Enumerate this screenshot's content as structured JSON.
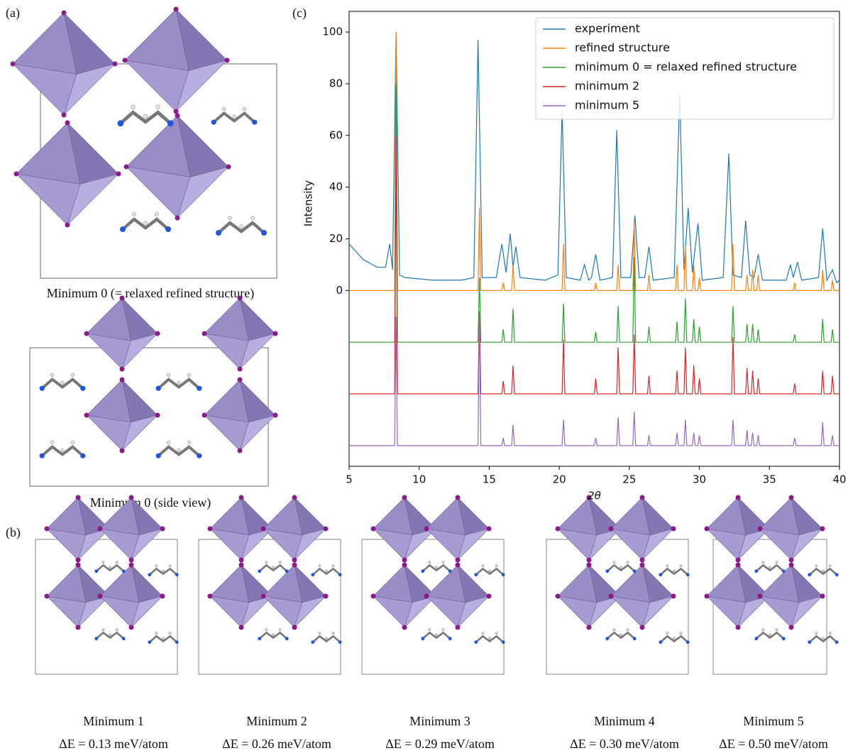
{
  "panels": {
    "a": {
      "label": "(a)",
      "caption_top": "Minimum 0 (= relaxed refined structure)",
      "caption_side": "Minimum 0 (side view)"
    },
    "b": {
      "label": "(b)",
      "minima": [
        {
          "name": "Minimum  1",
          "energy": "ΔE = 0.13 meV/atom"
        },
        {
          "name": "Minimum  2",
          "energy": "ΔE = 0.26 meV/atom"
        },
        {
          "name": "Minimum  3",
          "energy": "ΔE = 0.29 meV/atom"
        },
        {
          "name": "Minimum  4",
          "energy": "ΔE = 0.30 meV/atom"
        },
        {
          "name": "Minimum  5",
          "energy": "ΔE = 0.50 meV/atom"
        }
      ]
    },
    "c": {
      "label": "(c)"
    }
  },
  "chart_data": {
    "type": "line",
    "xlabel": "2θ",
    "ylabel": "Intensity",
    "xlim": [
      5,
      40
    ],
    "ylim": [
      -68,
      108
    ],
    "xticks": [
      5,
      10,
      15,
      20,
      25,
      30,
      35,
      40
    ],
    "yticks": [
      0,
      20,
      40,
      60,
      80,
      100
    ],
    "legend": "upper right",
    "x": [
      5,
      8.25,
      8.35,
      8.45,
      14.2,
      14.3,
      14.4,
      15.9,
      16.0,
      16.1,
      16.6,
      16.7,
      16.8,
      20.2,
      20.3,
      20.4,
      22.5,
      22.6,
      22.7,
      24.1,
      24.2,
      24.3,
      25.25,
      25.35,
      25.45,
      26.3,
      26.4,
      26.5,
      28.3,
      28.4,
      28.5,
      28.9,
      29.0,
      29.1,
      29.5,
      29.6,
      29.7,
      29.9,
      30.0,
      30.1,
      32.3,
      32.4,
      32.5,
      33.3,
      33.4,
      33.5,
      33.7,
      33.8,
      33.9,
      34.1,
      34.2,
      34.3,
      36.7,
      36.8,
      36.9,
      38.7,
      38.8,
      38.9,
      39.4,
      39.5,
      39.6,
      40
    ],
    "series": [
      {
        "name": "experiment",
        "color": "#1f77b4",
        "x": [
          5,
          6,
          7,
          7.6,
          7.9,
          8.1,
          8.35,
          8.6,
          9,
          11,
          13,
          13.9,
          14.2,
          14.5,
          15.5,
          15.9,
          16.2,
          16.5,
          16.7,
          16.9,
          17.2,
          19,
          19.9,
          20.2,
          20.5,
          21.5,
          21.8,
          22.1,
          22.3,
          22.6,
          22.9,
          23.8,
          24.1,
          24.4,
          25.1,
          25.4,
          25.7,
          26.1,
          26.4,
          26.7,
          28.2,
          28.6,
          28.9,
          29.2,
          29.5,
          29.9,
          30.2,
          31.7,
          32.1,
          32.4,
          33,
          33.3,
          33.6,
          33.9,
          34.2,
          34.5,
          36.2,
          36.5,
          36.7,
          37.0,
          37.3,
          38.5,
          38.8,
          39.1,
          39.5,
          39.8,
          40
        ],
        "values": [
          18,
          12,
          9,
          9,
          18,
          8,
          100,
          6,
          5,
          4,
          4,
          5,
          97,
          5,
          5,
          18,
          7,
          22,
          9,
          17,
          5,
          4,
          6,
          70,
          5,
          4,
          10,
          4,
          5,
          14,
          4,
          5,
          62,
          5,
          5,
          29,
          5,
          5,
          17,
          4,
          5,
          76,
          8,
          32,
          7,
          26,
          4,
          5,
          53,
          6,
          5,
          27,
          6,
          5,
          14,
          4,
          4,
          10,
          5,
          11,
          4,
          5,
          24,
          4,
          8,
          3,
          4
        ]
      },
      {
        "name": "refined structure",
        "color": "#ff7f0e",
        "values": [
          0,
          0,
          100,
          0,
          0,
          32,
          0,
          0,
          3,
          0,
          0,
          10,
          0,
          0,
          18,
          0,
          0,
          3,
          0,
          0,
          10,
          0,
          0,
          27,
          0,
          0,
          6,
          0,
          0,
          10,
          0,
          0,
          17,
          0,
          0,
          10,
          0,
          0,
          5,
          0,
          0,
          18,
          0,
          0,
          6,
          0,
          0,
          8,
          0,
          0,
          6,
          0,
          0,
          3,
          0,
          0,
          8,
          0,
          0,
          4,
          0,
          0
        ]
      },
      {
        "name": "minimum 0 = relaxed refined structure",
        "color": "#2ca02c",
        "values": [
          -20,
          -20,
          80,
          -20,
          -20,
          5,
          -20,
          -20,
          -15,
          -20,
          -20,
          -7,
          -20,
          -20,
          -5,
          -20,
          -20,
          -16,
          -20,
          -20,
          -6,
          -20,
          -20,
          13,
          -20,
          -20,
          -14,
          -20,
          -20,
          -12,
          -20,
          -20,
          -3,
          -20,
          -20,
          -11,
          -20,
          -20,
          -14,
          -20,
          -20,
          -6,
          -20,
          -20,
          -13,
          -20,
          -20,
          -13,
          -20,
          -20,
          -15,
          -20,
          -20,
          -17,
          -20,
          -20,
          -11,
          -20,
          -20,
          -15,
          -20,
          -20
        ]
      },
      {
        "name": "minimum 2",
        "color": "#d62728",
        "values": [
          -40,
          -40,
          60,
          -40,
          -40,
          -8,
          -40,
          -40,
          -35,
          -40,
          -40,
          -29,
          -40,
          -40,
          -19,
          -40,
          -40,
          -34,
          -40,
          -40,
          -22,
          -40,
          -40,
          -17,
          -40,
          -40,
          -33,
          -40,
          -40,
          -31,
          -40,
          -40,
          -22,
          -40,
          -40,
          -29,
          -40,
          -40,
          -34,
          -40,
          -40,
          -18,
          -40,
          -40,
          -30,
          -40,
          -40,
          -31,
          -40,
          -40,
          -34,
          -40,
          -40,
          -36,
          -40,
          -40,
          -31,
          -40,
          -40,
          -33,
          -40,
          -40
        ]
      },
      {
        "name": "minimum 5",
        "color": "#9467bd",
        "values": [
          -60,
          -60,
          -10,
          -60,
          -60,
          -8,
          -60,
          -60,
          -57,
          -60,
          -60,
          -52,
          -60,
          -60,
          -50,
          -60,
          -60,
          -57,
          -60,
          -60,
          -49,
          -60,
          -60,
          -47,
          -60,
          -60,
          -56,
          -60,
          -60,
          -55,
          -60,
          -60,
          -50,
          -60,
          -60,
          -55,
          -60,
          -60,
          -56,
          -60,
          -60,
          -50,
          -60,
          -60,
          -54,
          -60,
          -60,
          -55,
          -60,
          -60,
          -56,
          -60,
          -60,
          -57,
          -60,
          -60,
          -51,
          -60,
          -60,
          -56,
          -60,
          -60
        ]
      }
    ]
  }
}
